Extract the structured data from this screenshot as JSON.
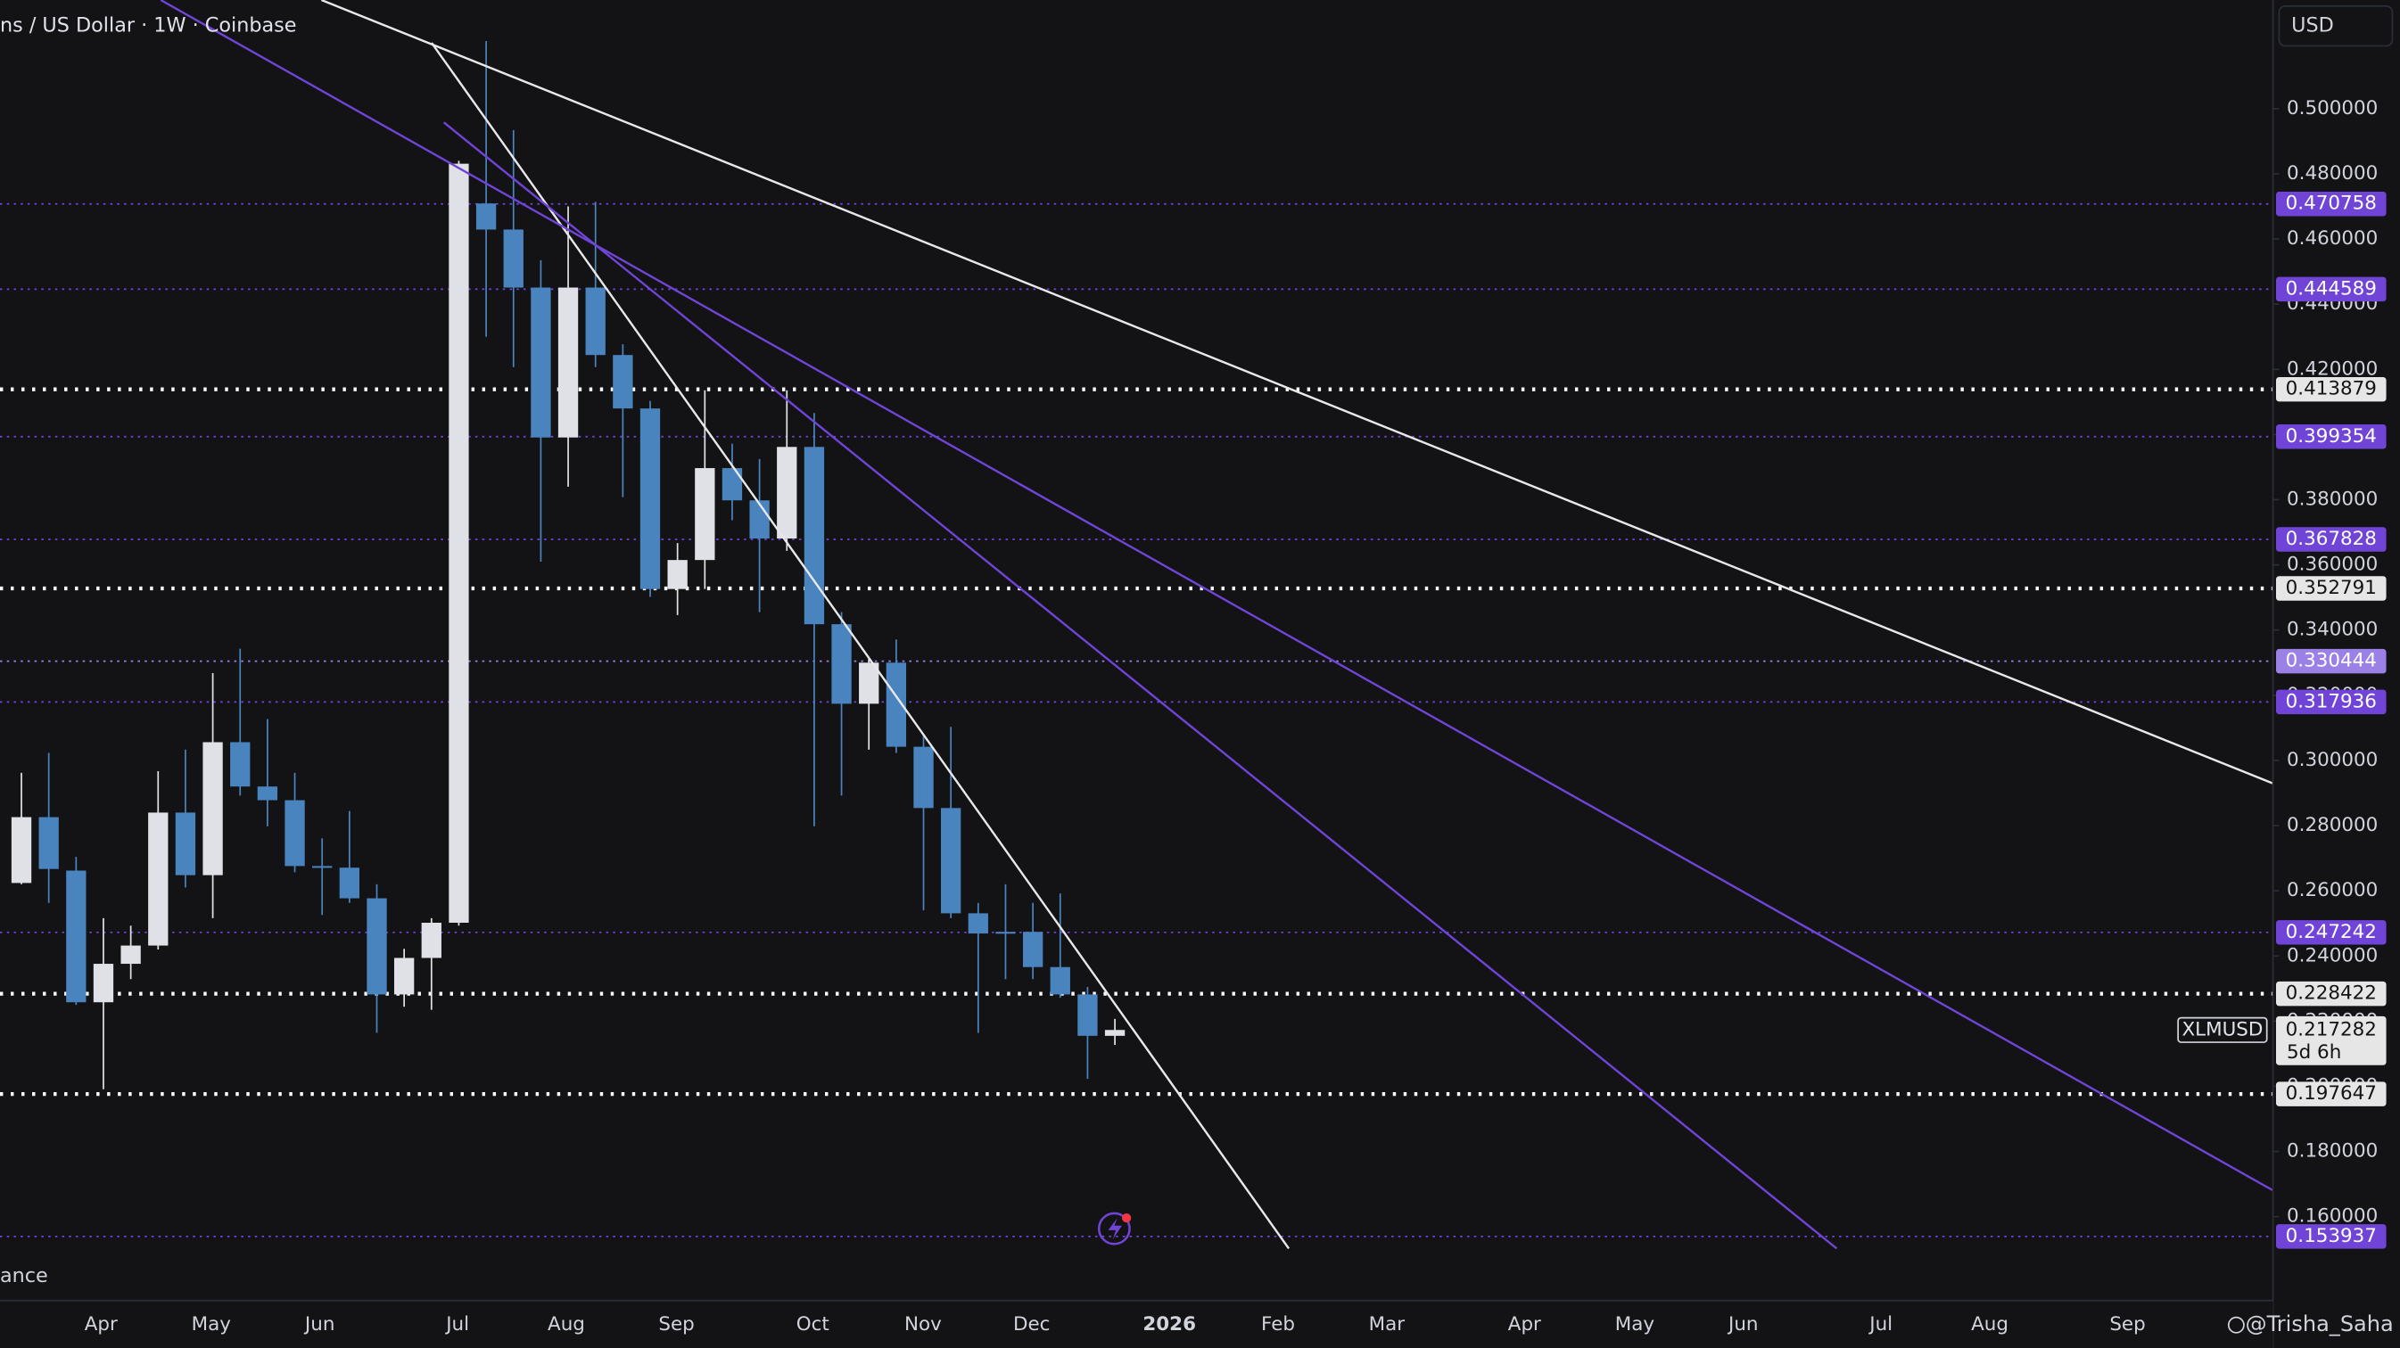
{
  "chart_data": {
    "type": "candlestick",
    "title": "ns / US Dollar · 1W · Coinbase",
    "currency": "USD",
    "legend_fragment": "ance",
    "watermark": "@Trisha_Saha",
    "symbol": "XLMUSD",
    "countdown": "5d 6h",
    "last_price": 0.217282,
    "up_color": "#dfe1e6",
    "down_color": "#4a84bf",
    "open": [
      0.2624,
      0.2826,
      0.2662,
      0.2258,
      0.2376,
      0.2432,
      0.284,
      0.2648,
      0.3056,
      0.292,
      0.2878,
      0.2676,
      0.2671,
      0.2577,
      0.2282,
      0.2394,
      0.2502,
      0.4709,
      0.4629,
      0.4451,
      0.3991,
      0.4451,
      0.4244,
      0.408,
      0.3526,
      0.3615,
      0.3897,
      0.3798,
      0.3681,
      0.3962,
      0.3418,
      0.3174,
      0.33,
      0.3042,
      0.2854,
      0.2531,
      0.2474,
      0.2474,
      0.2366,
      0.2282,
      0.2155
    ],
    "high": [
      0.2962,
      0.3023,
      0.2704,
      0.2516,
      0.2493,
      0.2967,
      0.3033,
      0.3268,
      0.3343,
      0.3127,
      0.2962,
      0.2761,
      0.2845,
      0.262,
      0.2422,
      0.2516,
      0.484,
      0.5207,
      0.4934,
      0.4535,
      0.47,
      0.4714,
      0.4277,
      0.4103,
      0.3667,
      0.4136,
      0.3972,
      0.3925,
      0.4136,
      0.4066,
      0.3455,
      0.3314,
      0.3371,
      0.308,
      0.3103,
      0.2563,
      0.262,
      0.2563,
      0.2592,
      0.2305,
      0.2207
    ],
    "low": [
      0.262,
      0.2563,
      0.225,
      0.1991,
      0.2329,
      0.242,
      0.261,
      0.2516,
      0.2892,
      0.2798,
      0.2657,
      0.2526,
      0.2563,
      0.2164,
      0.2244,
      0.2235,
      0.2493,
      0.43,
      0.4207,
      0.361,
      0.384,
      0.4207,
      0.3808,
      0.3502,
      0.3446,
      0.3526,
      0.3737,
      0.3455,
      0.3643,
      0.2798,
      0.2892,
      0.3033,
      0.3023,
      0.254,
      0.2516,
      0.2164,
      0.2329,
      0.2329,
      0.2272,
      0.2023,
      0.2127
    ],
    "close": [
      0.2826,
      0.2667,
      0.2258,
      0.2376,
      0.2432,
      0.284,
      0.2648,
      0.3056,
      0.292,
      0.2878,
      0.2676,
      0.2671,
      0.2577,
      0.2282,
      0.2394,
      0.2502,
      0.4831,
      0.4629,
      0.4451,
      0.3991,
      0.4451,
      0.4244,
      0.408,
      0.3526,
      0.3615,
      0.3897,
      0.3798,
      0.3681,
      0.3962,
      0.3418,
      0.3174,
      0.33,
      0.3042,
      0.2854,
      0.2531,
      0.2469,
      0.2469,
      0.2366,
      0.2282,
      0.2155,
      0.2173
    ],
    "ylim": [
      0.13427,
      0.53333
    ],
    "yticks": [
      {
        "value": 0.16,
        "label": "0.160000"
      },
      {
        "value": 0.18,
        "label": "0.180000"
      },
      {
        "value": 0.2,
        "label": "0.200000"
      },
      {
        "value": 0.22,
        "label": "0.220000"
      },
      {
        "value": 0.24,
        "label": "0.240000"
      },
      {
        "value": 0.26,
        "label": "0.260000"
      },
      {
        "value": 0.28,
        "label": "0.280000"
      },
      {
        "value": 0.3,
        "label": "0.300000"
      },
      {
        "value": 0.32,
        "label": "0.320000"
      },
      {
        "value": 0.34,
        "label": "0.340000"
      },
      {
        "value": 0.36,
        "label": "0.360000"
      },
      {
        "value": 0.38,
        "label": "0.380000"
      },
      {
        "value": 0.4,
        "label": "0.400000"
      },
      {
        "value": 0.42,
        "label": "0.420000"
      },
      {
        "value": 0.44,
        "label": "0.440000"
      },
      {
        "value": 0.46,
        "label": "0.460000"
      },
      {
        "value": 0.48,
        "label": "0.480000"
      },
      {
        "value": 0.5,
        "label": "0.500000"
      }
    ],
    "x_labels": [
      "Apr",
      "May",
      "Jun",
      "Jul",
      "Aug",
      "Sep",
      "Oct",
      "Nov",
      "Dec",
      "2026",
      "Feb",
      "Mar",
      "Apr",
      "May",
      "Jun",
      "Jul",
      "Aug",
      "Sep"
    ],
    "price_levels": [
      {
        "value": 0.470758,
        "color": "#7044d6",
        "style": "purple"
      },
      {
        "value": 0.444589,
        "color": "#7044d6",
        "style": "purple"
      },
      {
        "value": 0.413879,
        "color": "#e6e6e6",
        "style": "white"
      },
      {
        "value": 0.399354,
        "color": "#7044d6",
        "style": "purple"
      },
      {
        "value": 0.367828,
        "color": "#7044d6",
        "style": "purple"
      },
      {
        "value": 0.352791,
        "color": "#e6e6e6",
        "style": "white"
      },
      {
        "value": 0.330444,
        "color": "#9b80e6",
        "style": "purple"
      },
      {
        "value": 0.317936,
        "color": "#7044d6",
        "style": "purple"
      },
      {
        "value": 0.247242,
        "color": "#7044d6",
        "style": "purple"
      },
      {
        "value": 0.228422,
        "color": "#e6e6e6",
        "style": "white"
      },
      {
        "value": 0.197647,
        "color": "#e6e6e6",
        "style": "white"
      },
      {
        "value": 0.153937,
        "color": "#7044d6",
        "style": "purple"
      }
    ]
  }
}
